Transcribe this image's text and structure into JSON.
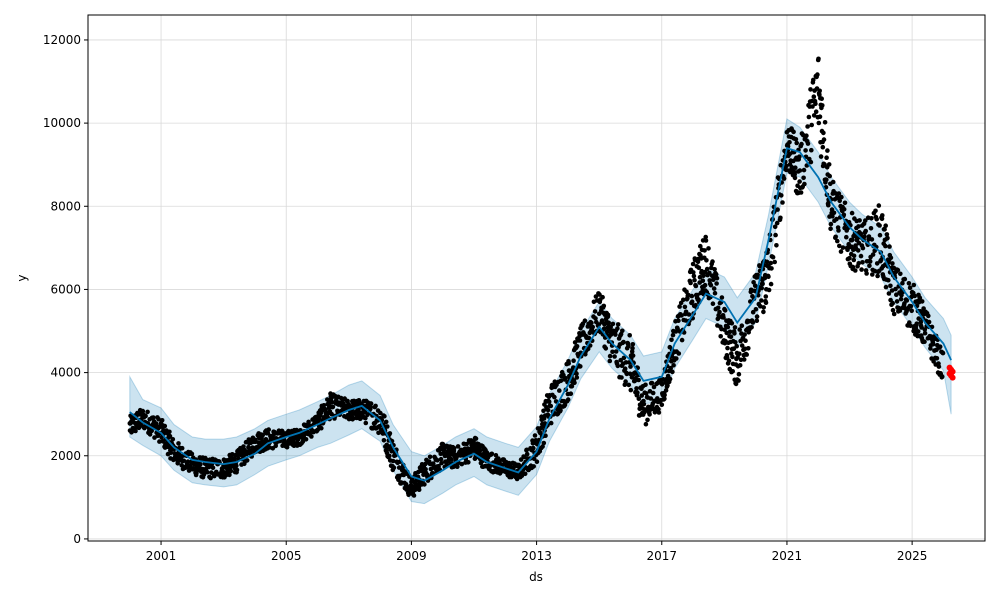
{
  "chart_data": {
    "type": "line",
    "title": "",
    "xlabel": "ds",
    "ylabel": "y",
    "xlim": [
      "1998-09-01",
      "2027-05-01"
    ],
    "ylim": [
      -50,
      12600
    ],
    "grid": true,
    "x_ticks": [
      "2001",
      "2005",
      "2009",
      "2013",
      "2017",
      "2021",
      "2025"
    ],
    "y_ticks": [
      0,
      2000,
      4000,
      6000,
      8000,
      10000,
      12000
    ],
    "colors": {
      "forecast_line": "#0072B2",
      "uncertainty_band": "#0072B2",
      "observations": "#000000",
      "highlight_points": "#ff0000",
      "grid": "#d9d9d9"
    },
    "series": [
      {
        "kind": "forecast",
        "x": [
          "2000-01-01",
          "2000-06-01",
          "2001-01-01",
          "2001-06-01",
          "2002-01-01",
          "2002-06-01",
          "2003-01-01",
          "2003-06-01",
          "2004-01-01",
          "2004-06-01",
          "2005-01-01",
          "2005-06-01",
          "2006-01-01",
          "2006-06-01",
          "2007-01-01",
          "2007-06-01",
          "2008-01-01",
          "2008-06-01",
          "2009-01-01",
          "2009-06-01",
          "2010-01-01",
          "2010-06-01",
          "2011-01-01",
          "2011-06-01",
          "2012-01-01",
          "2012-06-01",
          "2013-01-01",
          "2013-06-01",
          "2014-01-01",
          "2014-06-01",
          "2015-01-01",
          "2015-06-01",
          "2016-01-01",
          "2016-06-01",
          "2017-01-01",
          "2017-06-01",
          "2018-01-01",
          "2018-06-01",
          "2019-01-01",
          "2019-06-01",
          "2020-01-01",
          "2020-06-01",
          "2021-01-01",
          "2021-06-01",
          "2022-01-01",
          "2022-06-01",
          "2023-01-01",
          "2023-06-01",
          "2024-01-01",
          "2024-06-01",
          "2025-01-01",
          "2025-06-01",
          "2026-01-01",
          "2026-04-01"
        ],
        "yhat": [
          3050,
          2800,
          2550,
          2200,
          1900,
          1850,
          1800,
          1850,
          2050,
          2300,
          2450,
          2550,
          2750,
          2900,
          3100,
          3200,
          2850,
          2200,
          1500,
          1400,
          1650,
          1850,
          2050,
          1850,
          1700,
          1600,
          2100,
          2900,
          3700,
          4400,
          5100,
          4700,
          4300,
          3800,
          3900,
          4700,
          5400,
          5900,
          5700,
          5200,
          5800,
          7200,
          9400,
          9300,
          8700,
          8100,
          7500,
          7200,
          6900,
          6300,
          5700,
          5200,
          4700,
          4300
        ],
        "yhat_lower": [
          2450,
          2250,
          2000,
          1650,
          1350,
          1300,
          1250,
          1300,
          1550,
          1750,
          1900,
          2000,
          2200,
          2300,
          2500,
          2650,
          2350,
          1650,
          900,
          850,
          1100,
          1300,
          1500,
          1300,
          1150,
          1050,
          1550,
          2350,
          3150,
          3850,
          4500,
          4100,
          3700,
          3250,
          3300,
          4100,
          4800,
          5300,
          5100,
          4600,
          5200,
          6600,
          8800,
          8700,
          8100,
          7500,
          6900,
          6600,
          6300,
          5700,
          5100,
          4600,
          4050,
          3000
        ],
        "yhat_upper": [
          3900,
          3350,
          3150,
          2750,
          2450,
          2400,
          2400,
          2450,
          2650,
          2850,
          3000,
          3100,
          3300,
          3450,
          3700,
          3800,
          3450,
          2750,
          2100,
          2000,
          2250,
          2450,
          2650,
          2450,
          2300,
          2200,
          2700,
          3500,
          4300,
          5000,
          5700,
          5300,
          4900,
          4400,
          4500,
          5300,
          6000,
          6500,
          6300,
          5800,
          6400,
          7800,
          10100,
          9900,
          9300,
          8700,
          8100,
          7800,
          7500,
          6900,
          6300,
          5800,
          5300,
          4900
        ]
      },
      {
        "kind": "observations",
        "x": [
          "2000-01-01",
          "2000-06-01",
          "2001-01-01",
          "2001-06-01",
          "2002-01-01",
          "2002-06-01",
          "2003-01-01",
          "2003-06-01",
          "2004-01-01",
          "2004-06-01",
          "2005-01-01",
          "2005-06-01",
          "2006-01-01",
          "2006-06-01",
          "2007-01-01",
          "2007-06-01",
          "2008-01-01",
          "2008-06-01",
          "2009-01-01",
          "2009-06-01",
          "2010-01-01",
          "2010-06-01",
          "2011-01-01",
          "2011-06-01",
          "2012-01-01",
          "2012-06-01",
          "2013-01-01",
          "2013-06-01",
          "2014-01-01",
          "2014-06-01",
          "2015-01-01",
          "2015-06-01",
          "2016-01-01",
          "2016-06-01",
          "2017-01-01",
          "2017-06-01",
          "2018-01-01",
          "2018-06-01",
          "2019-01-01",
          "2019-06-01",
          "2020-01-01",
          "2020-06-01",
          "2021-01-01",
          "2021-06-01",
          "2022-01-01",
          "2022-06-01",
          "2023-01-01",
          "2023-06-01",
          "2024-01-01",
          "2024-06-01",
          "2025-01-01",
          "2025-06-01",
          "2026-01-01"
        ],
        "y": [
          2700,
          2900,
          2600,
          2100,
          1800,
          1700,
          1700,
          1850,
          2300,
          2400,
          2400,
          2450,
          2800,
          3200,
          3100,
          3100,
          2900,
          2000,
          1200,
          1600,
          2000,
          1950,
          2200,
          1900,
          1700,
          1600,
          2200,
          3200,
          3800,
          4600,
          5500,
          4700,
          4200,
          3200,
          3500,
          4700,
          6000,
          6700,
          5000,
          4300,
          5800,
          6400,
          9500,
          8800,
          10800,
          8000,
          7200,
          7000,
          7200,
          6000,
          5600,
          5100,
          4100
        ],
        "spread": [
          250,
          250,
          300,
          300,
          250,
          250,
          250,
          250,
          250,
          250,
          200,
          200,
          250,
          300,
          250,
          250,
          400,
          400,
          250,
          300,
          300,
          250,
          300,
          250,
          200,
          200,
          400,
          500,
          500,
          500,
          500,
          600,
          700,
          500,
          400,
          500,
          700,
          700,
          600,
          700,
          600,
          900,
          600,
          700,
          1100,
          700,
          700,
          600,
          900,
          600,
          600,
          500,
          350
        ]
      },
      {
        "kind": "highlight",
        "x": [
          "2026-04-01"
        ],
        "y": [
          4000
        ]
      }
    ]
  }
}
